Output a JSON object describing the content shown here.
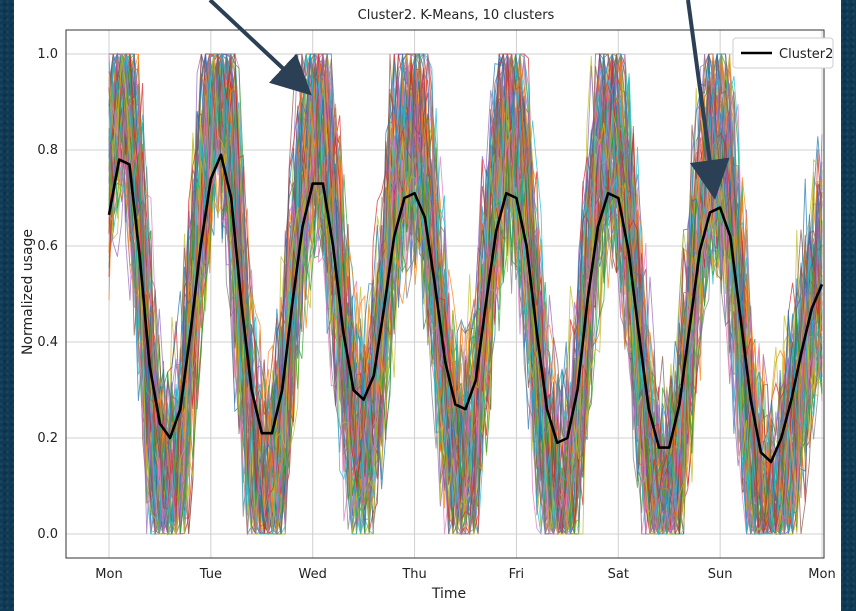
{
  "chart_data": {
    "type": "line",
    "title": "Cluster2. K-Means, 10 clusters",
    "xlabel": "Time",
    "ylabel": "Normalized usage",
    "x_tick_labels": [
      "Mon",
      "Tue",
      "Wed",
      "Thu",
      "Fri",
      "Sat",
      "Sun",
      "Mon"
    ],
    "y_ticks": [
      0.0,
      0.2,
      0.4,
      0.6,
      0.8,
      1.0
    ],
    "y_tick_labels": [
      "0.0",
      "0.2",
      "0.4",
      "0.6",
      "0.8",
      "1.0"
    ],
    "xlim": [
      0,
      7
    ],
    "ylim": [
      -0.05,
      1.05
    ],
    "grid": true,
    "legend": {
      "placement": "top-right",
      "entries": [
        "Cluster2"
      ]
    },
    "series": [
      {
        "name": "Cluster2",
        "color": "#000000",
        "x": [
          0.0,
          0.1,
          0.2,
          0.3,
          0.4,
          0.5,
          0.6,
          0.7,
          0.8,
          0.9,
          1.0,
          1.1,
          1.2,
          1.3,
          1.4,
          1.5,
          1.6,
          1.7,
          1.8,
          1.9,
          2.0,
          2.1,
          2.2,
          2.3,
          2.4,
          2.5,
          2.6,
          2.7,
          2.8,
          2.9,
          3.0,
          3.1,
          3.2,
          3.3,
          3.4,
          3.5,
          3.6,
          3.7,
          3.8,
          3.9,
          4.0,
          4.1,
          4.2,
          4.3,
          4.4,
          4.5,
          4.6,
          4.7,
          4.8,
          4.9,
          5.0,
          5.1,
          5.2,
          5.3,
          5.4,
          5.5,
          5.6,
          5.7,
          5.8,
          5.9,
          6.0,
          6.1,
          6.2,
          6.3,
          6.4,
          6.5,
          6.6,
          6.7,
          6.8,
          6.9,
          7.0
        ],
        "y": [
          0.665,
          0.78,
          0.77,
          0.58,
          0.35,
          0.23,
          0.2,
          0.26,
          0.42,
          0.6,
          0.74,
          0.79,
          0.7,
          0.48,
          0.3,
          0.21,
          0.21,
          0.3,
          0.48,
          0.64,
          0.73,
          0.73,
          0.6,
          0.42,
          0.3,
          0.28,
          0.33,
          0.47,
          0.62,
          0.7,
          0.71,
          0.66,
          0.52,
          0.36,
          0.27,
          0.26,
          0.32,
          0.48,
          0.63,
          0.71,
          0.7,
          0.6,
          0.42,
          0.26,
          0.19,
          0.2,
          0.3,
          0.49,
          0.64,
          0.71,
          0.7,
          0.59,
          0.42,
          0.26,
          0.18,
          0.18,
          0.27,
          0.43,
          0.59,
          0.67,
          0.68,
          0.62,
          0.45,
          0.28,
          0.17,
          0.15,
          0.2,
          0.28,
          0.38,
          0.47,
          0.52
        ]
      }
    ],
    "background_traces": {
      "description_visible": "many thin multicolored time series from the cluster",
      "colors": [
        "#1f77b4",
        "#ff7f0e",
        "#2ca02c",
        "#d62728",
        "#9467bd",
        "#8c564b",
        "#e377c2",
        "#7f7f7f",
        "#bcbd22",
        "#17becf"
      ]
    }
  },
  "arrows": {
    "color": "#2b3f55"
  }
}
